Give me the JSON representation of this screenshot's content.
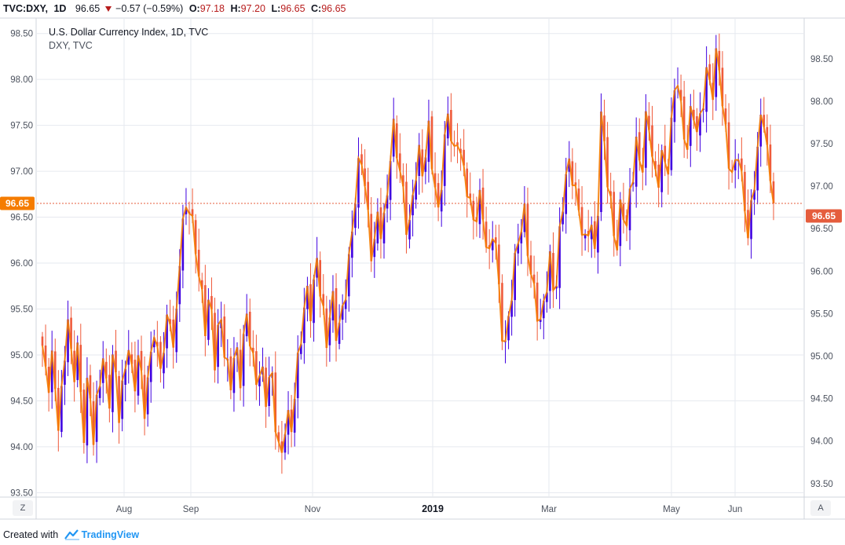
{
  "header": {
    "symbol": "TVC:DXY,",
    "timeframe": "1D",
    "last": "96.65",
    "change": "−0.57 (−0.59%)",
    "o_label": "O:",
    "o_value": "97.18",
    "h_label": "H:",
    "h_value": "97.20",
    "l_label": "L:",
    "l_value": "96.65",
    "c_label": "C:",
    "c_value": "96.65"
  },
  "legend": {
    "title": "U.S. Dollar Currency Index, 1D, TVC",
    "subtitle": "DXY, TVC"
  },
  "price_tag": "96.65",
  "buttons": {
    "left": "Z",
    "right": "A"
  },
  "footer": {
    "created_with": "Created with",
    "brand": "TradingView"
  },
  "colors": {
    "up": "#3f00e0",
    "down": "#ef5a3a",
    "close_line": "#f57c00",
    "grid": "#e6e9ef",
    "last_price": "#e55d3d"
  },
  "chart_data": {
    "type": "candlestick",
    "title": "U.S. Dollar Currency Index, 1D, TVC",
    "x_ticks": [
      "Aug",
      "Sep",
      "Nov",
      "2019",
      "Mar",
      "May",
      "Jun"
    ],
    "x_bold_tick": "2019",
    "left_axis": {
      "ticks": [
        "98.50",
        "98.00",
        "97.50",
        "97.00",
        "96.50",
        "96.00",
        "95.50",
        "95.00",
        "94.50",
        "94.00",
        "93.50"
      ],
      "range": [
        93.46,
        98.66
      ]
    },
    "right_axis": {
      "ticks": [
        "98.50",
        "98.00",
        "97.50",
        "97.00",
        "96.50",
        "96.00",
        "95.50",
        "95.00",
        "94.50",
        "94.00",
        "93.50"
      ],
      "range": [
        93.35,
        98.97
      ]
    },
    "last_price": 96.65,
    "close_series": [
      95.1,
      94.5,
      95.0,
      94.3,
      94.7,
      95.4,
      94.6,
      95.2,
      94.1,
      94.8,
      94.0,
      94.6,
      95.1,
      94.4,
      95.0,
      94.3,
      94.8,
      95.2,
      94.5,
      95.0,
      94.4,
      94.9,
      95.3,
      94.7,
      95.1,
      95.6,
      95.0,
      96.0,
      96.5,
      96.7,
      96.3,
      95.8,
      95.2,
      95.7,
      95.0,
      95.5,
      94.9,
      94.6,
      95.2,
      94.8,
      95.4,
      95.1,
      94.7,
      95.0,
      94.5,
      94.8,
      94.2,
      93.9,
      94.4,
      94.1,
      94.7,
      95.3,
      95.8,
      95.4,
      96.0,
      95.6,
      95.2,
      95.7,
      95.1,
      95.4,
      95.9,
      96.4,
      96.9,
      97.1,
      96.6,
      96.1,
      96.5,
      96.2,
      96.8,
      97.6,
      97.2,
      96.7,
      96.2,
      96.8,
      97.3,
      96.9,
      97.4,
      97.0,
      96.6,
      97.2,
      97.6,
      97.1,
      97.5,
      97.0,
      96.7,
      96.3,
      96.8,
      96.5,
      96.0,
      96.4,
      95.6,
      95.1,
      95.5,
      95.9,
      96.3,
      96.6,
      96.0,
      95.6,
      95.2,
      95.7,
      96.1,
      95.6,
      96.3,
      96.9,
      97.2,
      96.8,
      96.4,
      96.1,
      96.6,
      96.0,
      97.6,
      97.0,
      96.6,
      96.2,
      96.7,
      96.3,
      96.8,
      97.4,
      97.0,
      97.6,
      97.2,
      96.8,
      97.3,
      96.9,
      97.5,
      98.1,
      97.6,
      97.3,
      97.7,
      97.3,
      97.8,
      98.2,
      97.8,
      98.3,
      97.7,
      97.3,
      96.9,
      97.2,
      96.7,
      96.4,
      96.8,
      97.3,
      97.6,
      97.1,
      96.65
    ]
  }
}
